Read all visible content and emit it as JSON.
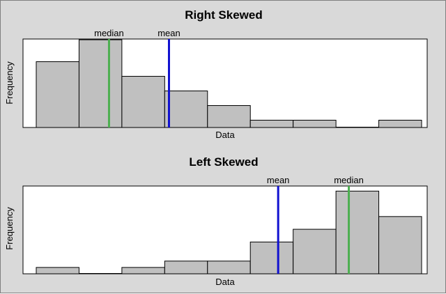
{
  "chart_data": [
    {
      "type": "bar",
      "title": "Right Skewed",
      "xlabel": "Data",
      "ylabel": "Frequency",
      "bins": 9,
      "values": [
        9,
        12,
        7,
        5,
        3,
        1,
        1,
        0,
        1
      ],
      "ylim": [
        0,
        12.1
      ],
      "grid": false,
      "bar_color": "#c0c0c0",
      "annotations": [
        {
          "label": "median",
          "position": 1.7,
          "color": "#4caf50"
        },
        {
          "label": "mean",
          "position": 3.1,
          "color": "#1010d0"
        }
      ]
    },
    {
      "type": "bar",
      "title": "Left Skewed",
      "xlabel": "Data",
      "ylabel": "Frequency",
      "bins": 9,
      "values": [
        1,
        0,
        1,
        2,
        2,
        5,
        7,
        13,
        9
      ],
      "ylim": [
        0,
        13.8
      ],
      "grid": false,
      "bar_color": "#c0c0c0",
      "annotations": [
        {
          "label": "mean",
          "position": 5.65,
          "color": "#1010d0"
        },
        {
          "label": "median",
          "position": 7.3,
          "color": "#4caf50"
        }
      ]
    }
  ]
}
